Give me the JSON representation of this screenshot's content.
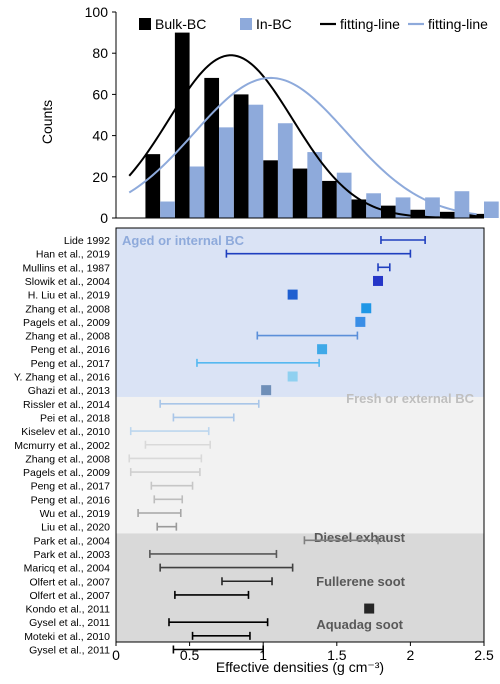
{
  "chart_data": [
    {
      "type": "bar",
      "ylabel": "Counts",
      "ylim": [
        0,
        100
      ],
      "yticks": [
        0,
        20,
        40,
        60,
        80,
        100
      ],
      "xlim": [
        0,
        2.5
      ],
      "grid": false,
      "legend_position": "top",
      "bin_width": 0.1,
      "series": [
        {
          "name": "Bulk-BC",
          "color": "#000000",
          "x": [
            0.25,
            0.45,
            0.65,
            0.85,
            1.05,
            1.25,
            1.45,
            1.65,
            1.85,
            2.05,
            2.25,
            2.45
          ],
          "values": [
            31,
            90,
            68,
            60,
            28,
            24,
            18,
            9,
            6,
            4,
            3,
            2
          ]
        },
        {
          "name": "In-BC",
          "color": "#8eaadb",
          "x": [
            0.35,
            0.55,
            0.75,
            0.95,
            1.15,
            1.35,
            1.55,
            1.75,
            1.95,
            2.15,
            2.35,
            2.55
          ],
          "values": [
            8,
            25,
            44,
            55,
            46,
            32,
            22,
            12,
            10,
            10,
            13,
            8
          ]
        }
      ],
      "curves": [
        {
          "name": "fitting-line",
          "color": "#000000",
          "peak": 79,
          "mean": 0.78,
          "sd": 0.42,
          "x_start": 0.09,
          "x_end": 2.3
        },
        {
          "name": "fitting-line",
          "color": "#8eaadb",
          "peak": 68,
          "mean": 1.05,
          "sd": 0.52,
          "x_start": 0.09,
          "x_end": 2.45
        }
      ]
    },
    {
      "type": "errorbar",
      "xlabel": "Effective densities (g cm⁻³)",
      "xlim": [
        0,
        2.5
      ],
      "xticks": [
        "0",
        "0.5",
        "1",
        "1.5",
        "2",
        "2.5"
      ],
      "region_labels": [
        {
          "text": "Aged or internal BC",
          "color": "#8eaadb"
        },
        {
          "text": "Fresh or external BC",
          "color": "#bfbfbf"
        },
        {
          "text": "Diesel exhaust",
          "color": "#595959"
        },
        {
          "text": "Fullerene soot",
          "color": "#595959"
        },
        {
          "text": "Aquadag soot",
          "color": "#595959"
        }
      ],
      "rows": [
        {
          "label": "Lide 1992",
          "kind": "range",
          "low": 1.8,
          "high": 2.1,
          "color": "#1f3fbf"
        },
        {
          "label": "Han et al., 2019",
          "kind": "range",
          "low": 0.75,
          "high": 2.0,
          "color": "#1f3fbf"
        },
        {
          "label": "Mullins et al., 1987",
          "kind": "range",
          "low": 1.78,
          "high": 1.86,
          "color": "#1f3fbf"
        },
        {
          "label": "Slowik et al., 2004",
          "kind": "point",
          "value": 1.78,
          "color": "#2536c8"
        },
        {
          "label": "H. Liu et al., 2019",
          "kind": "point",
          "value": 1.2,
          "color": "#1f5fd0"
        },
        {
          "label": "Zhang et al., 2008",
          "kind": "point",
          "value": 1.7,
          "color": "#1f97e6"
        },
        {
          "label": "Pagels et al., 2009",
          "kind": "point",
          "value": 1.66,
          "color": "#3a8ee6"
        },
        {
          "label": "Zhang et al., 2008",
          "kind": "range",
          "low": 0.96,
          "high": 1.64,
          "color": "#5b8fd9"
        },
        {
          "label": "Peng et al., 2016",
          "kind": "point",
          "value": 1.4,
          "color": "#3fa9e8"
        },
        {
          "label": "Peng et al., 2017",
          "kind": "range",
          "low": 0.55,
          "high": 1.38,
          "color": "#55b8f0"
        },
        {
          "label": "Y. Zhang et al., 2016",
          "kind": "point",
          "value": 1.2,
          "color": "#8fd0f0"
        },
        {
          "label": "Ghazi et al., 2013",
          "kind": "point",
          "value": 1.02,
          "color": "#6f8fb8"
        },
        {
          "label": "Rissler et al., 2014",
          "kind": "range",
          "low": 0.3,
          "high": 0.97,
          "color": "#a9c6e8"
        },
        {
          "label": "Pei et al., 2018",
          "kind": "range",
          "low": 0.39,
          "high": 0.8,
          "color": "#a9c6e8"
        },
        {
          "label": "Kiselev et al., 2010",
          "kind": "range",
          "low": 0.1,
          "high": 0.63,
          "color": "#bcd6ee"
        },
        {
          "label": "Mcmurry et al., 2002",
          "kind": "range",
          "low": 0.2,
          "high": 0.64,
          "color": "#d9d9d9"
        },
        {
          "label": "Zhang et al., 2008",
          "kind": "range",
          "low": 0.09,
          "high": 0.58,
          "color": "#d9d9d9"
        },
        {
          "label": "Pagels et al., 2009",
          "kind": "range",
          "low": 0.1,
          "high": 0.57,
          "color": "#cfcfcf"
        },
        {
          "label": "Peng et al., 2017",
          "kind": "range",
          "low": 0.24,
          "high": 0.52,
          "color": "#c6c6c6"
        },
        {
          "label": "Peng et al., 2016",
          "kind": "range",
          "low": 0.26,
          "high": 0.45,
          "color": "#bdbdbd"
        },
        {
          "label": "Wu et al., 2019",
          "kind": "range",
          "low": 0.15,
          "high": 0.44,
          "color": "#a6a6a6"
        },
        {
          "label": "Liu et al., 2020",
          "kind": "range",
          "low": 0.28,
          "high": 0.41,
          "color": "#9a9a9a"
        },
        {
          "label": "Park et al., 2004",
          "kind": "range",
          "low": 1.28,
          "high": 1.78,
          "color": "#7f7f7f"
        },
        {
          "label": "Park et al., 2003",
          "kind": "range",
          "low": 0.23,
          "high": 1.09,
          "color": "#595959"
        },
        {
          "label": "Maricq et al., 2004",
          "kind": "range",
          "low": 0.3,
          "high": 1.2,
          "color": "#404040"
        },
        {
          "label": "Olfert et al., 2007",
          "kind": "range",
          "low": 0.72,
          "high": 1.06,
          "color": "#262626"
        },
        {
          "label": "Olfert et al., 2007",
          "kind": "range",
          "low": 0.4,
          "high": 0.9,
          "color": "#000000"
        },
        {
          "label": "Kondo et al., 2011",
          "kind": "point",
          "value": 1.72,
          "color": "#262626"
        },
        {
          "label": "Gysel et al., 2011",
          "kind": "range",
          "low": 0.36,
          "high": 1.03,
          "color": "#000000"
        },
        {
          "label": "Moteki et al., 2010",
          "kind": "range",
          "low": 0.52,
          "high": 0.91,
          "color": "#000000"
        },
        {
          "label": "Gysel et al., 2011",
          "kind": "range",
          "low": 0.39,
          "high": 1.0,
          "color": "#000000"
        }
      ]
    }
  ]
}
